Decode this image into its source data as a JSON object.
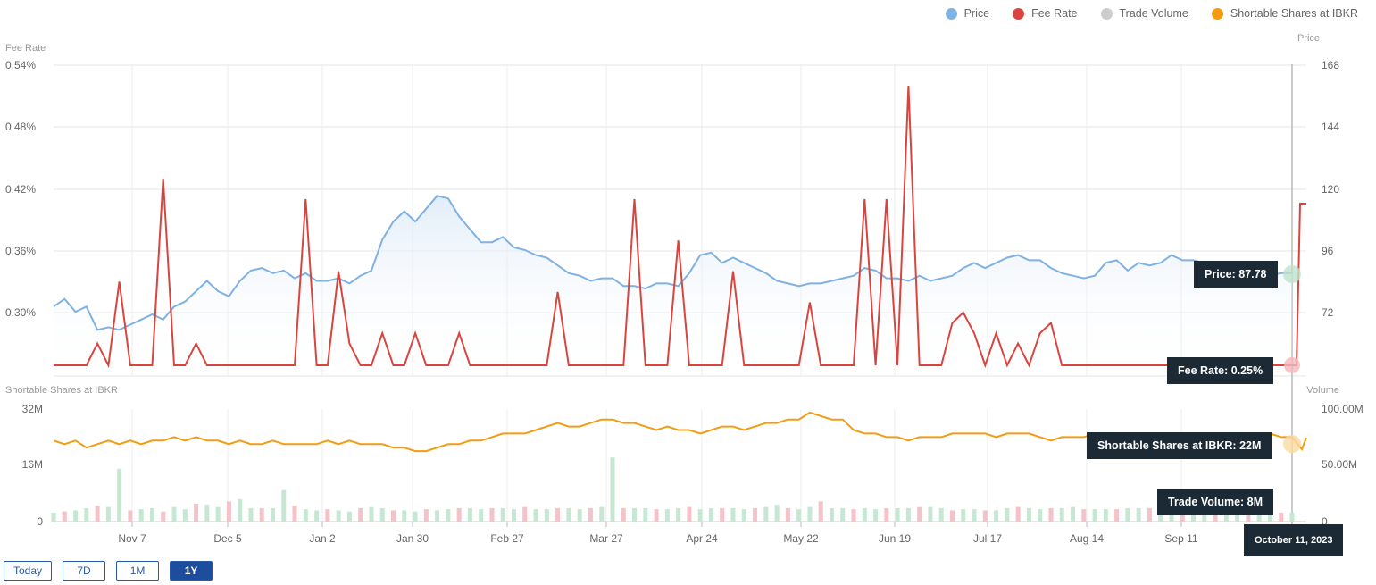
{
  "legend": [
    {
      "label": "Price",
      "color": "#7fb1e3"
    },
    {
      "label": "Fee Rate",
      "color": "#d9453e"
    },
    {
      "label": "Trade Volume",
      "color": "#cccccc"
    },
    {
      "label": "Shortable Shares at IBKR",
      "color": "#f39c12"
    }
  ],
  "range_buttons": [
    "Today",
    "7D",
    "1M",
    "1Y"
  ],
  "active_range": "1Y",
  "tooltips": {
    "price": "Price: 87.78",
    "fee_rate": "Fee Rate: 0.25%",
    "shortable": "Shortable Shares at IBKR: 22M",
    "volume": "Trade Volume: 8M",
    "date": "October 11, 2023"
  },
  "chart_data": [
    {
      "type": "line",
      "panel": "top",
      "x_tick_labels": [
        "Nov 7",
        "Dec 5",
        "Jan 2",
        "Jan 30",
        "Feb 27",
        "Mar 27",
        "Apr 24",
        "May 22",
        "Jun 19",
        "Jul 17",
        "Aug 14",
        "Sep 11"
      ],
      "left_axis": {
        "title": "Fee Rate",
        "ticks": [
          "0.54%",
          "0.48%",
          "0.42%",
          "0.36%",
          "0.30%"
        ],
        "range": [
          0.25,
          0.54
        ]
      },
      "right_axis": {
        "title": "Price",
        "ticks": [
          "168",
          "144",
          "120",
          "96",
          "72"
        ],
        "range": [
          48,
          168
        ]
      },
      "grid": true,
      "series": [
        {
          "name": "Price",
          "axis": "right",
          "color": "#7fb1e3",
          "values": [
            75,
            78,
            73,
            75,
            66,
            67,
            66,
            68,
            70,
            72,
            70,
            75,
            77,
            81,
            85,
            81,
            79,
            85,
            89,
            90,
            88,
            89,
            86,
            88,
            85,
            85,
            86,
            84,
            87,
            89,
            101,
            108,
            112,
            108,
            113,
            118,
            117,
            110,
            105,
            100,
            100,
            102,
            98,
            97,
            95,
            94,
            91,
            88,
            87,
            85,
            86,
            86,
            83,
            83,
            82,
            84,
            84,
            83,
            88,
            95,
            96,
            92,
            94,
            92,
            90,
            88,
            85,
            84,
            83,
            84,
            84,
            85,
            86,
            87,
            90,
            89,
            86,
            86,
            85,
            87,
            85,
            86,
            87,
            90,
            92,
            90,
            92,
            94,
            95,
            93,
            93,
            90,
            88,
            87,
            86,
            87,
            92,
            93,
            89,
            92,
            91,
            92,
            95,
            93,
            93,
            92,
            90,
            89,
            87,
            86,
            86,
            87,
            88,
            88
          ]
        },
        {
          "name": "Fee Rate",
          "axis": "left",
          "color": "#d9453e",
          "values": [
            0.26,
            0.26,
            0.26,
            0.26,
            0.27,
            0.26,
            0.33,
            0.26,
            0.26,
            0.26,
            0.43,
            0.26,
            0.26,
            0.27,
            0.26,
            0.26,
            0.26,
            0.26,
            0.26,
            0.26,
            0.26,
            0.26,
            0.26,
            0.41,
            0.26,
            0.26,
            0.34,
            0.27,
            0.26,
            0.26,
            0.28,
            0.26,
            0.26,
            0.28,
            0.26,
            0.26,
            0.26,
            0.28,
            0.26,
            0.26,
            0.26,
            0.26,
            0.26,
            0.26,
            0.26,
            0.26,
            0.32,
            0.26,
            0.26,
            0.26,
            0.26,
            0.26,
            0.26,
            0.41,
            0.26,
            0.26,
            0.26,
            0.37,
            0.26,
            0.26,
            0.26,
            0.26,
            0.34,
            0.26,
            0.26,
            0.26,
            0.26,
            0.26,
            0.26,
            0.31,
            0.26,
            0.26,
            0.26,
            0.26,
            0.41,
            0.26,
            0.41,
            0.26,
            0.52,
            0.26,
            0.26,
            0.26,
            0.29,
            0.3,
            0.28,
            0.26,
            0.28,
            0.26,
            0.27,
            0.26,
            0.28,
            0.29,
            0.26,
            0.26,
            0.26,
            0.26,
            0.26,
            0.26,
            0.26,
            0.26,
            0.26,
            0.26,
            0.26,
            0.26,
            0.26,
            0.26,
            0.26,
            0.26,
            0.26,
            0.26,
            0.26,
            0.26,
            0.26,
            0.25
          ]
        }
      ]
    },
    {
      "type": "line",
      "panel": "bottom",
      "x_tick_labels": [
        "Nov 7",
        "Dec 5",
        "Jan 2",
        "Jan 30",
        "Feb 27",
        "Mar 27",
        "Apr 24",
        "May 22",
        "Jun 19",
        "Jul 17",
        "Aug 14",
        "Sep 11"
      ],
      "left_axis": {
        "title": "Shortable Shares at IBKR",
        "ticks": [
          "32M",
          "16M",
          "0"
        ],
        "range": [
          0,
          32
        ]
      },
      "right_axis": {
        "title": "Volume",
        "ticks": [
          "100.00M",
          "50.00M",
          "0"
        ],
        "range": [
          0,
          100
        ]
      },
      "series": [
        {
          "name": "Shortable Shares at IBKR",
          "axis": "left",
          "color": "#f39c12",
          "values": [
            21,
            20,
            21,
            19,
            20,
            21,
            20,
            21,
            20,
            21,
            21,
            22,
            21,
            22,
            21,
            21,
            20,
            21,
            20,
            20,
            21,
            20,
            20,
            20,
            20,
            21,
            20,
            21,
            20,
            20,
            20,
            19,
            19,
            18,
            18,
            19,
            20,
            20,
            21,
            21,
            22,
            23,
            23,
            23,
            24,
            25,
            26,
            25,
            25,
            26,
            27,
            27,
            26,
            26,
            25,
            24,
            25,
            24,
            24,
            23,
            24,
            25,
            25,
            24,
            25,
            26,
            26,
            27,
            27,
            29,
            28,
            27,
            27,
            24,
            23,
            23,
            22,
            22,
            21,
            22,
            22,
            22,
            23,
            23,
            23,
            23,
            22,
            23,
            23,
            23,
            22,
            21,
            22,
            22,
            22,
            23,
            22,
            22,
            22,
            23,
            22,
            22,
            21,
            22,
            22,
            22,
            23,
            22,
            22,
            22,
            22,
            23,
            22,
            22
          ]
        },
        {
          "name": "Trade Volume",
          "axis": "right",
          "type": "bar",
          "values": [
            8,
            9,
            10,
            12,
            14,
            13,
            47,
            10,
            11,
            12,
            9,
            13,
            11,
            16,
            15,
            13,
            18,
            20,
            12,
            12,
            12,
            28,
            14,
            11,
            10,
            11,
            10,
            9,
            12,
            13,
            12,
            10,
            10,
            9,
            11,
            10,
            11,
            12,
            12,
            11,
            12,
            12,
            11,
            13,
            11,
            11,
            12,
            12,
            11,
            12,
            13,
            57,
            12,
            12,
            12,
            11,
            11,
            12,
            13,
            11,
            12,
            12,
            12,
            11,
            12,
            13,
            15,
            12,
            11,
            13,
            18,
            12,
            12,
            11,
            12,
            11,
            12,
            12,
            12,
            13,
            13,
            12,
            10,
            11,
            11,
            10,
            10,
            12,
            13,
            12,
            11,
            12,
            12,
            13,
            11,
            11,
            11,
            11,
            12,
            12,
            12,
            11,
            12,
            11,
            10,
            10,
            10,
            9,
            9,
            9,
            8,
            8,
            8,
            8
          ]
        }
      ]
    }
  ]
}
